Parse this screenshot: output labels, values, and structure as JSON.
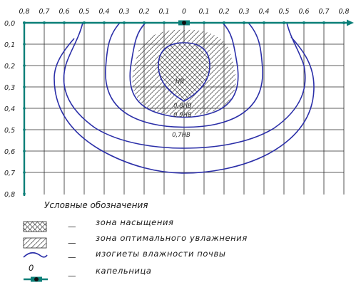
{
  "x_ticks": [
    "0,8",
    "0,7",
    "0,6",
    "0,5",
    "0,4",
    "0,3",
    "0,2",
    "0,1",
    "0",
    "0,1",
    "0,2",
    "0,3",
    "0,4",
    "0,5",
    "0,6",
    "0,7",
    "0,8"
  ],
  "y_ticks": [
    "0,0",
    "0,1",
    "0,2",
    "0,3",
    "0,4",
    "0,5",
    "0,6",
    "0,7",
    "0,8"
  ],
  "isoline_labels": {
    "nv": "HB",
    "nv08": "0,8HB",
    "nv09": "0,9HB",
    "nv07": "0,7HB"
  },
  "legend": {
    "title": "Условные обозначения",
    "saturation": "зона  насыщения",
    "optimal": "зона  оптимального  увлажнения",
    "isolines": "изогиеты  влажности  почвы",
    "dripper_symbol": "0",
    "dripper": "капельница",
    "dash": "—"
  },
  "colors": {
    "axis": "#0b7f78",
    "grid": "#2a2a2a",
    "isoline": "#2b2fa8",
    "hatch": "#3a3a3a"
  }
}
